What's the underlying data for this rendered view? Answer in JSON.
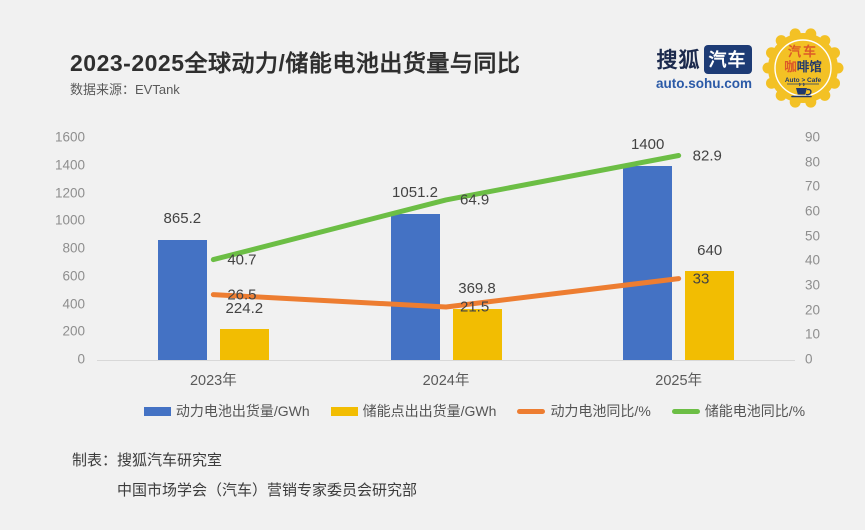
{
  "header": {
    "title": "2023-2025全球动力/储能电池出货量与同比",
    "source": "数据来源：EVTank"
  },
  "branding": {
    "sohu_text": "搜狐",
    "auto_text": "汽车",
    "domain": "auto.sohu.com",
    "badge_line1": "汽车",
    "badge_line2a": "咖",
    "badge_line2b": "啡馆",
    "badge_line3": "Auto > Cafe"
  },
  "chart_data": {
    "type": "combo-bar-line",
    "categories": [
      "2023年",
      "2024年",
      "2025年"
    ],
    "series": [
      {
        "name": "动力电池出货量/GWh",
        "type": "bar",
        "axis": "left",
        "color": "#4472C4",
        "values": [
          865.2,
          1051.2,
          1400
        ]
      },
      {
        "name": "储能点出出货量/GWh",
        "type": "bar",
        "axis": "left",
        "color": "#F2BD02",
        "values": [
          224.2,
          369.8,
          640
        ]
      },
      {
        "name": "动力电池同比/%",
        "type": "line",
        "axis": "right",
        "color": "#ED7D31",
        "values": [
          26.5,
          21.5,
          33
        ]
      },
      {
        "name": "储能电池同比/%",
        "type": "line",
        "axis": "right",
        "color": "#6CBE45",
        "values": [
          40.7,
          64.9,
          82.9
        ]
      }
    ],
    "left_axis": {
      "min": 0,
      "max": 1600,
      "step": 200
    },
    "right_axis": {
      "min": 0,
      "max": 90,
      "step": 10
    },
    "grid": "baseline-only",
    "legend_position": "bottom"
  },
  "footer": {
    "label": "制表：",
    "line1": "搜狐汽车研究室",
    "line2": "中国市场学会（汽车）营销专家委员会研究部"
  }
}
